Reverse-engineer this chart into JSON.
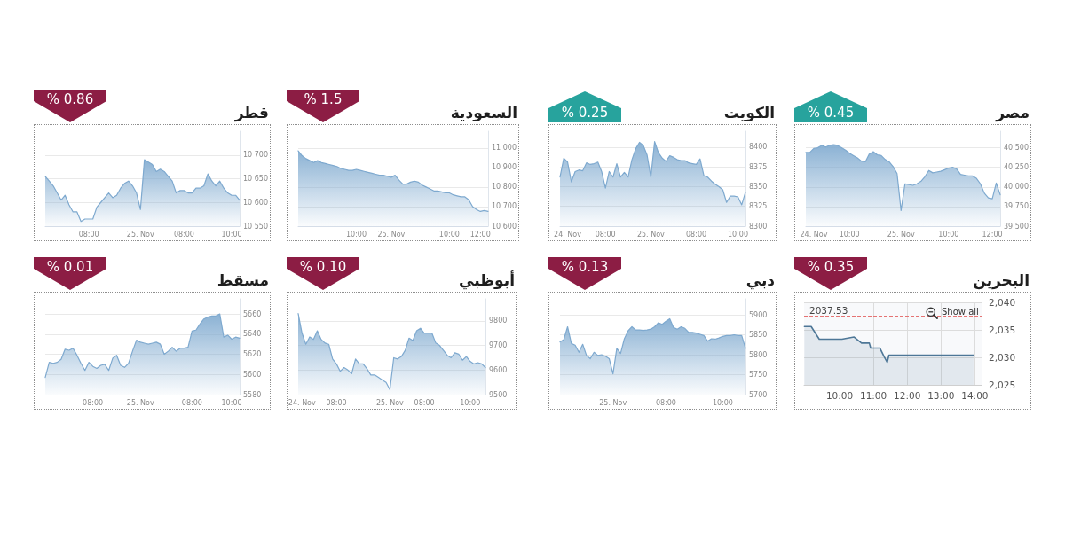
{
  "chart_data": [
    {
      "type": "area",
      "title": "قطر",
      "annotations": [
        "% 0.86"
      ],
      "color": "#7ea9cf",
      "grid": "y",
      "categories": [
        null,
        null,
        null,
        null,
        null,
        null,
        null,
        null,
        null,
        null,
        null,
        "08:00",
        null,
        null,
        null,
        null,
        null,
        null,
        null,
        null,
        null,
        null,
        null,
        null,
        "25. Nov",
        null,
        null,
        null,
        null,
        null,
        null,
        null,
        null,
        null,
        null,
        "08:00",
        null,
        null,
        null,
        null,
        null,
        null,
        null,
        null,
        null,
        null,
        null,
        "10:00",
        null,
        null
      ],
      "values": [
        10655,
        10645,
        10635,
        10620,
        10605,
        10615,
        10595,
        10580,
        10580,
        10560,
        10565,
        10565,
        10565,
        10590,
        10600,
        10610,
        10620,
        10610,
        10615,
        10630,
        10640,
        10645,
        10635,
        10620,
        10585,
        10690,
        10685,
        10680,
        10665,
        10670,
        10665,
        10655,
        10645,
        10620,
        10625,
        10625,
        10620,
        10620,
        10630,
        10630,
        10635,
        10660,
        10645,
        10635,
        10645,
        10630,
        10620,
        10615,
        10615,
        10605
      ],
      "ylim": [
        10550,
        10750
      ],
      "yticks": [
        {
          "value": 10550,
          "label": "10 550"
        },
        {
          "value": 10600,
          "label": "10 600"
        },
        {
          "value": 10650,
          "label": "10 650"
        },
        {
          "value": 10700,
          "label": "10 700"
        }
      ]
    },
    {
      "type": "area",
      "title": "السعودية",
      "annotations": [
        "% 1.5"
      ],
      "color": "#7ea9cf",
      "grid": "y",
      "categories": [
        null,
        null,
        null,
        null,
        null,
        null,
        null,
        null,
        null,
        null,
        null,
        null,
        null,
        null,
        null,
        "10:00",
        null,
        null,
        null,
        null,
        null,
        null,
        null,
        null,
        "25. Nov",
        null,
        null,
        null,
        null,
        null,
        null,
        null,
        null,
        null,
        null,
        null,
        null,
        null,
        null,
        "10:00",
        null,
        null,
        null,
        null,
        null,
        null,
        null,
        "12:00",
        null,
        null
      ],
      "values": [
        10985,
        10960,
        10945,
        10935,
        10925,
        10935,
        10925,
        10920,
        10915,
        10910,
        10905,
        10895,
        10890,
        10885,
        10885,
        10890,
        10885,
        10880,
        10875,
        10870,
        10865,
        10860,
        10860,
        10855,
        10850,
        10860,
        10835,
        10815,
        10815,
        10825,
        10830,
        10825,
        10810,
        10800,
        10790,
        10780,
        10780,
        10775,
        10770,
        10770,
        10760,
        10755,
        10750,
        10750,
        10735,
        10700,
        10685,
        10675,
        10680,
        10675
      ],
      "ylim": [
        10600,
        11085
      ],
      "yticks": [
        {
          "value": 10600,
          "label": "10 600"
        },
        {
          "value": 10700,
          "label": "10 700"
        },
        {
          "value": 10800,
          "label": "10 800"
        },
        {
          "value": 10900,
          "label": "10 900"
        },
        {
          "value": 11000,
          "label": "11 000"
        }
      ]
    },
    {
      "type": "area",
      "title": "الكويت",
      "annotations": [
        "% 0.25"
      ],
      "color": "#7ea9cf",
      "grid": "y",
      "categories": [
        null,
        null,
        "24. Nov",
        null,
        null,
        null,
        null,
        null,
        null,
        null,
        null,
        null,
        "08:00",
        null,
        null,
        null,
        null,
        null,
        null,
        null,
        null,
        null,
        null,
        null,
        "25. Nov",
        null,
        null,
        null,
        null,
        null,
        null,
        null,
        null,
        null,
        null,
        null,
        "08:00",
        null,
        null,
        null,
        null,
        null,
        null,
        null,
        null,
        null,
        null,
        "10:00",
        null,
        null
      ],
      "values": [
        8362,
        8386,
        8381,
        8356,
        8369,
        8371,
        8370,
        8380,
        8378,
        8379,
        8381,
        8369,
        8348,
        8369,
        8362,
        8379,
        8362,
        8368,
        8362,
        8384,
        8398,
        8406,
        8402,
        8390,
        8362,
        8407,
        8393,
        8386,
        8382,
        8389,
        8387,
        8384,
        8383,
        8383,
        8380,
        8379,
        8378,
        8385,
        8364,
        8362,
        8357,
        8353,
        8350,
        8346,
        8330,
        8338,
        8338,
        8337,
        8327,
        8343
      ],
      "ylim": [
        8300,
        8420
      ],
      "yticks": [
        8300,
        8325,
        8350,
        8375,
        8400
      ]
    },
    {
      "type": "area",
      "title": "مصر",
      "annotations": [
        "% 0.45"
      ],
      "color": "#7ea9cf",
      "grid": "y",
      "categories": [
        null,
        null,
        "24. Nov",
        null,
        null,
        null,
        null,
        null,
        null,
        null,
        null,
        "10:00",
        null,
        null,
        null,
        null,
        null,
        null,
        null,
        null,
        null,
        null,
        null,
        null,
        "25. Nov",
        null,
        null,
        null,
        null,
        null,
        null,
        null,
        null,
        null,
        null,
        null,
        "10:00",
        null,
        null,
        null,
        null,
        null,
        null,
        null,
        null,
        null,
        null,
        "12:00",
        null,
        null
      ],
      "values": [
        40440,
        40440,
        40490,
        40500,
        40530,
        40510,
        40530,
        40540,
        40530,
        40500,
        40470,
        40430,
        40400,
        40370,
        40330,
        40320,
        40420,
        40450,
        40410,
        40400,
        40350,
        40320,
        40260,
        40170,
        39700,
        40040,
        40030,
        40020,
        40040,
        40070,
        40130,
        40210,
        40180,
        40190,
        40200,
        40220,
        40240,
        40250,
        40230,
        40160,
        40150,
        40140,
        40140,
        40110,
        40040,
        39920,
        39860,
        39850,
        40050,
        39900
      ],
      "ylim": [
        39500,
        40710
      ],
      "yticks": [
        {
          "value": 39500,
          "label": "39 500"
        },
        {
          "value": 39750,
          "label": "39 750"
        },
        {
          "value": 40000,
          "label": "40 000"
        },
        {
          "value": 40250,
          "label": "40 250"
        },
        {
          "value": 40500,
          "label": "40 500"
        }
      ]
    },
    {
      "type": "area",
      "title": "مسقط",
      "annotations": [
        "% 0.01"
      ],
      "color": "#7ea9cf",
      "grid": "y",
      "categories": [
        null,
        null,
        null,
        null,
        null,
        null,
        null,
        null,
        null,
        null,
        null,
        null,
        "08:00",
        null,
        null,
        null,
        null,
        null,
        null,
        null,
        null,
        null,
        null,
        null,
        "25. Nov",
        null,
        null,
        null,
        null,
        null,
        null,
        null,
        null,
        null,
        null,
        null,
        null,
        "08:00",
        null,
        null,
        null,
        null,
        null,
        null,
        null,
        null,
        null,
        "10:00",
        null,
        null
      ],
      "values": [
        5597,
        5612,
        5611,
        5612,
        5615,
        5625,
        5624,
        5626,
        5619,
        5611,
        5604,
        5612,
        5608,
        5606,
        5609,
        5610,
        5604,
        5616,
        5619,
        5609,
        5607,
        5611,
        5623,
        5634,
        5632,
        5631,
        5630,
        5631,
        5632,
        5630,
        5620,
        5623,
        5627,
        5623,
        5626,
        5626,
        5627,
        5643,
        5644,
        5650,
        5655,
        5657,
        5658,
        5658,
        5660,
        5637,
        5639,
        5635,
        5637,
        5636
      ],
      "ylim": [
        5580,
        5675
      ],
      "yticks": [
        5580,
        5600,
        5620,
        5640,
        5660
      ]
    },
    {
      "type": "area",
      "title": "أبوظبي",
      "annotations": [
        "% 0.10"
      ],
      "color": "#7ea9cf",
      "grid": "y",
      "categories": [
        null,
        "24. Nov",
        null,
        null,
        null,
        null,
        null,
        null,
        null,
        null,
        "08:00",
        null,
        null,
        null,
        null,
        null,
        null,
        null,
        null,
        null,
        null,
        null,
        null,
        null,
        "25. Nov",
        null,
        null,
        null,
        null,
        null,
        null,
        null,
        null,
        "08:00",
        null,
        null,
        null,
        null,
        null,
        null,
        null,
        null,
        null,
        null,
        null,
        "10:00",
        null,
        null,
        null,
        null
      ],
      "values": [
        9830,
        9750,
        9705,
        9735,
        9725,
        9760,
        9725,
        9710,
        9705,
        9645,
        9625,
        9595,
        9610,
        9600,
        9585,
        9645,
        9625,
        9625,
        9605,
        9580,
        9580,
        9570,
        9560,
        9550,
        9520,
        9650,
        9645,
        9655,
        9680,
        9730,
        9720,
        9760,
        9770,
        9750,
        9750,
        9750,
        9710,
        9700,
        9680,
        9660,
        9650,
        9670,
        9665,
        9640,
        9655,
        9635,
        9625,
        9630,
        9625,
        9610
      ],
      "ylim": [
        9500,
        9890
      ],
      "yticks": [
        9500,
        9600,
        9700,
        9800
      ]
    },
    {
      "type": "area",
      "title": "دبي",
      "annotations": [
        "% 0.13"
      ],
      "color": "#7ea9cf",
      "grid": "y",
      "categories": [
        null,
        null,
        null,
        null,
        null,
        null,
        null,
        null,
        null,
        null,
        null,
        null,
        null,
        null,
        "25. Nov",
        null,
        null,
        null,
        null,
        null,
        null,
        null,
        null,
        null,
        null,
        null,
        null,
        null,
        "08:00",
        null,
        null,
        null,
        null,
        null,
        null,
        null,
        null,
        null,
        null,
        null,
        null,
        null,
        null,
        "10:00",
        null,
        null,
        null,
        null,
        null,
        null
      ],
      "values": [
        5832,
        5838,
        5870,
        5828,
        5824,
        5806,
        5826,
        5798,
        5790,
        5806,
        5798,
        5800,
        5796,
        5790,
        5752,
        5816,
        5803,
        5840,
        5860,
        5870,
        5862,
        5862,
        5861,
        5862,
        5864,
        5870,
        5880,
        5876,
        5884,
        5890,
        5868,
        5864,
        5870,
        5866,
        5856,
        5856,
        5854,
        5851,
        5848,
        5834,
        5840,
        5839,
        5842,
        5846,
        5848,
        5848,
        5850,
        5848,
        5848,
        5816
      ],
      "ylim": [
        5700,
        5940
      ],
      "yticks": [
        5700,
        5750,
        5800,
        5850,
        5900
      ]
    },
    {
      "type": "area",
      "title": "البحرين",
      "annotations": [
        "% 0.35",
        "Show all"
      ],
      "color": "#4e7797",
      "grid": true,
      "x": [
        8.96,
        9.16,
        9.4,
        10.07,
        10.43,
        10.65,
        10.88,
        10.92,
        11.19,
        11.32,
        11.41,
        11.46,
        11.9,
        13.96
      ],
      "values": [
        2035.6,
        2035.6,
        2033.3,
        2033.3,
        2033.7,
        2032.6,
        2032.6,
        2031.7,
        2031.7,
        2030.1,
        2029.1,
        2030.4,
        2030.4,
        2030.4
      ],
      "xlim": [
        8.95,
        14.2
      ],
      "xticks": [
        {
          "value": 10,
          "label": "10:00"
        },
        {
          "value": 11,
          "label": "11:00"
        },
        {
          "value": 12,
          "label": "12:00"
        },
        {
          "value": 13,
          "label": "13:00"
        },
        {
          "value": 14,
          "label": "14:00"
        }
      ],
      "ylim": [
        2025,
        2040
      ],
      "yticks": [
        {
          "value": 2025,
          "label": "2,025"
        },
        {
          "value": 2030,
          "label": "2,030"
        },
        {
          "value": 2035,
          "label": "2,035"
        },
        {
          "value": 2040,
          "label": "2,040"
        }
      ],
      "ref_lines": [
        {
          "axis": "y",
          "value": 2037.53,
          "label": "2037.53",
          "color": "#e57373",
          "line_style": "dashed"
        }
      ]
    }
  ]
}
